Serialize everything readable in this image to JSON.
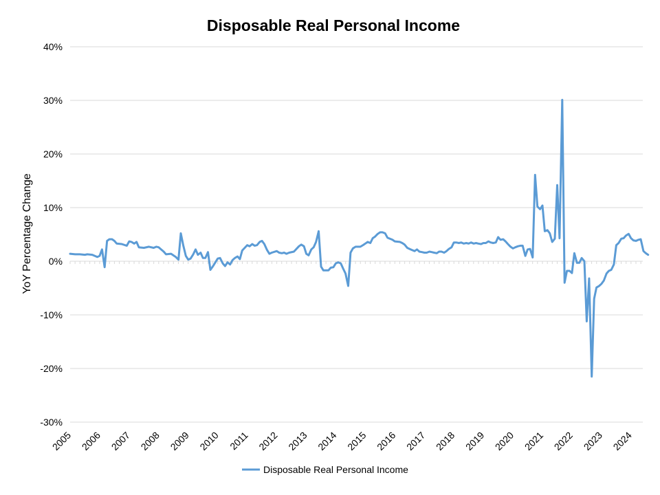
{
  "chart_data": {
    "type": "line",
    "title": "Disposable Real Personal Income",
    "xlabel": "",
    "ylabel": "YoY Percentage Change",
    "ylim": [
      -30,
      40
    ],
    "yticks": [
      -30,
      -20,
      -10,
      0,
      10,
      20,
      30,
      40
    ],
    "ytick_labels": [
      "-30%",
      "-20%",
      "-10%",
      "0%",
      "10%",
      "20%",
      "30%",
      "40%"
    ],
    "xlim": [
      2005,
      2024.4
    ],
    "xticks": [
      2005,
      2006,
      2007,
      2008,
      2009,
      2010,
      2011,
      2012,
      2013,
      2014,
      2015,
      2016,
      2017,
      2018,
      2019,
      2020,
      2021,
      2022,
      2023,
      2024
    ],
    "xtick_labels": [
      "2005",
      "2006",
      "2007",
      "2008",
      "2009",
      "2010",
      "2011",
      "2012",
      "2013",
      "2014",
      "2015",
      "2016",
      "2017",
      "2018",
      "2019",
      "2020",
      "2021",
      "2022",
      "2023",
      "2024"
    ],
    "grid": "horizontal",
    "legend_position": "bottom",
    "color": "#5b9bd5",
    "series": [
      {
        "name": "Disposable Real Personal Income",
        "points": [
          [
            2005.0,
            1.4
          ],
          [
            2005.17,
            1.3
          ],
          [
            2005.33,
            1.3
          ],
          [
            2005.5,
            1.2
          ],
          [
            2005.58,
            1.3
          ],
          [
            2005.75,
            1.2
          ],
          [
            2005.92,
            0.8
          ],
          [
            2006.0,
            1.0
          ],
          [
            2006.08,
            2.2
          ],
          [
            2006.17,
            -1.1
          ],
          [
            2006.25,
            3.8
          ],
          [
            2006.33,
            4.1
          ],
          [
            2006.42,
            4.1
          ],
          [
            2006.5,
            3.8
          ],
          [
            2006.58,
            3.3
          ],
          [
            2006.75,
            3.2
          ],
          [
            2006.92,
            2.9
          ],
          [
            2007.0,
            3.7
          ],
          [
            2007.08,
            3.6
          ],
          [
            2007.17,
            3.3
          ],
          [
            2007.25,
            3.6
          ],
          [
            2007.33,
            2.6
          ],
          [
            2007.5,
            2.5
          ],
          [
            2007.67,
            2.7
          ],
          [
            2007.83,
            2.5
          ],
          [
            2007.92,
            2.7
          ],
          [
            2008.0,
            2.6
          ],
          [
            2008.17,
            1.8
          ],
          [
            2008.25,
            1.3
          ],
          [
            2008.42,
            1.4
          ],
          [
            2008.58,
            0.8
          ],
          [
            2008.67,
            0.3
          ],
          [
            2008.75,
            5.2
          ],
          [
            2008.83,
            3.0
          ],
          [
            2008.92,
            1.0
          ],
          [
            2009.0,
            0.3
          ],
          [
            2009.08,
            0.5
          ],
          [
            2009.17,
            1.3
          ],
          [
            2009.25,
            2.2
          ],
          [
            2009.33,
            1.2
          ],
          [
            2009.42,
            1.6
          ],
          [
            2009.5,
            0.6
          ],
          [
            2009.58,
            0.6
          ],
          [
            2009.67,
            1.7
          ],
          [
            2009.75,
            -1.6
          ],
          [
            2009.83,
            -1.0
          ],
          [
            2009.92,
            -0.2
          ],
          [
            2010.0,
            0.5
          ],
          [
            2010.08,
            0.6
          ],
          [
            2010.17,
            -0.4
          ],
          [
            2010.25,
            -0.9
          ],
          [
            2010.33,
            -0.2
          ],
          [
            2010.42,
            -0.6
          ],
          [
            2010.5,
            0.2
          ],
          [
            2010.58,
            0.6
          ],
          [
            2010.67,
            0.9
          ],
          [
            2010.75,
            0.4
          ],
          [
            2010.83,
            2.0
          ],
          [
            2011.0,
            3.0
          ],
          [
            2011.08,
            2.8
          ],
          [
            2011.17,
            3.2
          ],
          [
            2011.25,
            2.9
          ],
          [
            2011.33,
            3.0
          ],
          [
            2011.42,
            3.6
          ],
          [
            2011.5,
            3.8
          ],
          [
            2011.58,
            3.2
          ],
          [
            2011.67,
            2.1
          ],
          [
            2011.75,
            1.4
          ],
          [
            2011.83,
            1.6
          ],
          [
            2012.0,
            1.9
          ],
          [
            2012.08,
            1.6
          ],
          [
            2012.17,
            1.5
          ],
          [
            2012.25,
            1.6
          ],
          [
            2012.33,
            1.4
          ],
          [
            2012.42,
            1.6
          ],
          [
            2012.58,
            1.8
          ],
          [
            2012.75,
            2.8
          ],
          [
            2012.83,
            3.1
          ],
          [
            2012.92,
            2.8
          ],
          [
            2013.0,
            1.4
          ],
          [
            2013.08,
            1.1
          ],
          [
            2013.17,
            2.2
          ],
          [
            2013.25,
            2.6
          ],
          [
            2013.33,
            3.6
          ],
          [
            2013.42,
            5.6
          ],
          [
            2013.5,
            -1.0
          ],
          [
            2013.58,
            -1.7
          ],
          [
            2013.67,
            -1.7
          ],
          [
            2013.75,
            -1.7
          ],
          [
            2013.83,
            -1.2
          ],
          [
            2013.92,
            -1.1
          ],
          [
            2014.0,
            -0.4
          ],
          [
            2014.08,
            -0.2
          ],
          [
            2014.17,
            -0.4
          ],
          [
            2014.25,
            -1.4
          ],
          [
            2014.33,
            -2.3
          ],
          [
            2014.42,
            -4.6
          ],
          [
            2014.5,
            1.6
          ],
          [
            2014.58,
            2.4
          ],
          [
            2014.67,
            2.7
          ],
          [
            2014.83,
            2.7
          ],
          [
            2014.92,
            3.0
          ],
          [
            2015.0,
            3.3
          ],
          [
            2015.08,
            3.6
          ],
          [
            2015.17,
            3.4
          ],
          [
            2015.25,
            4.3
          ],
          [
            2015.33,
            4.6
          ],
          [
            2015.42,
            5.1
          ],
          [
            2015.5,
            5.4
          ],
          [
            2015.58,
            5.4
          ],
          [
            2015.67,
            5.2
          ],
          [
            2015.75,
            4.4
          ],
          [
            2015.92,
            4.0
          ],
          [
            2016.0,
            3.7
          ],
          [
            2016.17,
            3.6
          ],
          [
            2016.25,
            3.4
          ],
          [
            2016.33,
            3.1
          ],
          [
            2016.42,
            2.5
          ],
          [
            2016.5,
            2.3
          ],
          [
            2016.58,
            2.1
          ],
          [
            2016.67,
            1.9
          ],
          [
            2016.75,
            2.2
          ],
          [
            2016.83,
            1.8
          ],
          [
            2016.92,
            1.7
          ],
          [
            2017.0,
            1.6
          ],
          [
            2017.08,
            1.6
          ],
          [
            2017.17,
            1.8
          ],
          [
            2017.25,
            1.7
          ],
          [
            2017.33,
            1.6
          ],
          [
            2017.42,
            1.5
          ],
          [
            2017.5,
            1.8
          ],
          [
            2017.58,
            1.8
          ],
          [
            2017.67,
            1.6
          ],
          [
            2017.75,
            1.9
          ],
          [
            2017.83,
            2.3
          ],
          [
            2017.92,
            2.6
          ],
          [
            2018.0,
            3.5
          ],
          [
            2018.08,
            3.5
          ],
          [
            2018.17,
            3.4
          ],
          [
            2018.25,
            3.5
          ],
          [
            2018.33,
            3.3
          ],
          [
            2018.42,
            3.4
          ],
          [
            2018.5,
            3.3
          ],
          [
            2018.58,
            3.5
          ],
          [
            2018.67,
            3.3
          ],
          [
            2018.75,
            3.4
          ],
          [
            2018.83,
            3.3
          ],
          [
            2018.92,
            3.2
          ],
          [
            2019.0,
            3.4
          ],
          [
            2019.08,
            3.4
          ],
          [
            2019.17,
            3.7
          ],
          [
            2019.25,
            3.5
          ],
          [
            2019.33,
            3.4
          ],
          [
            2019.42,
            3.5
          ],
          [
            2019.5,
            4.5
          ],
          [
            2019.58,
            4.0
          ],
          [
            2019.67,
            4.1
          ],
          [
            2019.75,
            3.7
          ],
          [
            2019.83,
            3.2
          ],
          [
            2019.92,
            2.7
          ],
          [
            2020.0,
            2.4
          ],
          [
            2020.08,
            2.6
          ],
          [
            2020.17,
            2.8
          ],
          [
            2020.25,
            2.9
          ],
          [
            2020.33,
            2.9
          ],
          [
            2020.42,
            1.0
          ],
          [
            2020.5,
            2.2
          ],
          [
            2020.58,
            2.3
          ],
          [
            2020.67,
            0.7
          ],
          [
            2020.75,
            16.1
          ],
          [
            2020.83,
            10.2
          ],
          [
            2020.92,
            9.7
          ],
          [
            2021.0,
            10.4
          ],
          [
            2021.08,
            5.6
          ],
          [
            2021.17,
            5.8
          ],
          [
            2021.25,
            5.2
          ],
          [
            2021.33,
            3.6
          ],
          [
            2021.42,
            4.2
          ],
          [
            2021.5,
            14.2
          ],
          [
            2021.58,
            4.3
          ],
          [
            2021.67,
            30.1
          ],
          [
            2021.75,
            -4.0
          ],
          [
            2021.83,
            -1.8
          ],
          [
            2021.92,
            -1.8
          ],
          [
            2022.0,
            -2.2
          ],
          [
            2022.08,
            1.5
          ],
          [
            2022.17,
            -0.3
          ],
          [
            2022.25,
            -0.3
          ],
          [
            2022.33,
            0.6
          ],
          [
            2022.42,
            0.0
          ],
          [
            2022.5,
            -11.2
          ],
          [
            2022.58,
            -3.2
          ],
          [
            2022.67,
            -21.5
          ],
          [
            2022.75,
            -7.0
          ],
          [
            2022.83,
            -4.9
          ],
          [
            2022.92,
            -4.6
          ],
          [
            2023.0,
            -4.2
          ],
          [
            2023.08,
            -3.6
          ],
          [
            2023.17,
            -2.3
          ],
          [
            2023.25,
            -1.8
          ],
          [
            2023.33,
            -1.6
          ],
          [
            2023.42,
            -0.6
          ],
          [
            2023.5,
            3.0
          ],
          [
            2023.58,
            3.4
          ],
          [
            2023.67,
            4.2
          ],
          [
            2023.75,
            4.3
          ],
          [
            2023.83,
            4.8
          ],
          [
            2023.92,
            5.1
          ],
          [
            2024.0,
            4.3
          ],
          [
            2024.08,
            3.9
          ],
          [
            2024.17,
            3.8
          ],
          [
            2024.25,
            4.0
          ],
          [
            2024.33,
            4.1
          ],
          [
            2024.42,
            1.9
          ],
          [
            2024.5,
            1.5
          ],
          [
            2024.58,
            1.2
          ]
        ]
      }
    ]
  }
}
